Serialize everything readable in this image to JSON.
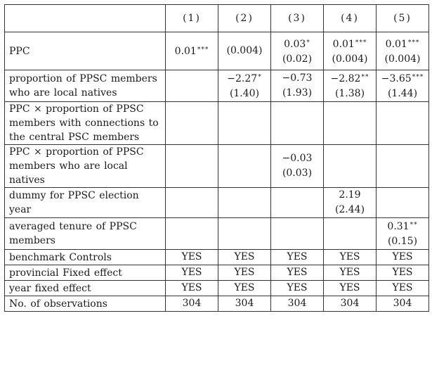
{
  "table": {
    "columns": [
      "(1)",
      "(2)",
      "(3)",
      "(4)",
      "(5)"
    ],
    "rows": [
      {
        "label": "PPC",
        "cells": [
          {
            "coef": "0.01",
            "stars": "***",
            "se": ""
          },
          {
            "coef": "",
            "stars": "",
            "se": "(0.004)"
          },
          {
            "coef": "0.03",
            "stars": "*",
            "se": "(0.02)"
          },
          {
            "coef": "0.01",
            "stars": "***",
            "se": "(0.004)"
          },
          {
            "coef": "0.01",
            "stars": "***",
            "se": "(0.004)"
          }
        ]
      },
      {
        "label": "proportion of PPSC members who are local natives",
        "cells": [
          {
            "coef": "",
            "stars": "",
            "se": ""
          },
          {
            "coef": "−2.27",
            "stars": "*",
            "se": "(1.40)"
          },
          {
            "coef": "−0.73",
            "stars": "",
            "se": "(1.93)"
          },
          {
            "coef": "−2.82",
            "stars": "**",
            "se": "(1.38)"
          },
          {
            "coef": "−3.65",
            "stars": "***",
            "se": "(1.44)"
          }
        ]
      },
      {
        "label": "PPC × proportion of PPSC members with connections to the central PSC members",
        "cells": [
          {
            "coef": "",
            "stars": "",
            "se": ""
          },
          {
            "coef": "",
            "stars": "",
            "se": ""
          },
          {
            "coef": "",
            "stars": "",
            "se": ""
          },
          {
            "coef": "",
            "stars": "",
            "se": ""
          },
          {
            "coef": "",
            "stars": "",
            "se": ""
          }
        ]
      },
      {
        "label": "PPC × proportion of PPSC members who are local natives",
        "cells": [
          {
            "coef": "",
            "stars": "",
            "se": ""
          },
          {
            "coef": "",
            "stars": "",
            "se": ""
          },
          {
            "coef": "−0.03",
            "stars": "",
            "se": "(0.03)"
          },
          {
            "coef": "",
            "stars": "",
            "se": ""
          },
          {
            "coef": "",
            "stars": "",
            "se": ""
          }
        ]
      },
      {
        "label": "dummy for PPSC election year",
        "cells": [
          {
            "coef": "",
            "stars": "",
            "se": ""
          },
          {
            "coef": "",
            "stars": "",
            "se": ""
          },
          {
            "coef": "",
            "stars": "",
            "se": ""
          },
          {
            "coef": "2.19",
            "stars": "",
            "se": "(2.44)"
          },
          {
            "coef": "",
            "stars": "",
            "se": ""
          }
        ]
      },
      {
        "label": "averaged tenure of PPSC members",
        "cells": [
          {
            "coef": "",
            "stars": "",
            "se": ""
          },
          {
            "coef": "",
            "stars": "",
            "se": ""
          },
          {
            "coef": "",
            "stars": "",
            "se": ""
          },
          {
            "coef": "",
            "stars": "",
            "se": ""
          },
          {
            "coef": "0.31",
            "stars": "**",
            "se": "(0.15)"
          }
        ]
      },
      {
        "label": "benchmark Controls",
        "cells": [
          {
            "coef": "YES",
            "stars": "",
            "se": ""
          },
          {
            "coef": "YES",
            "stars": "",
            "se": ""
          },
          {
            "coef": "YES",
            "stars": "",
            "se": ""
          },
          {
            "coef": "YES",
            "stars": "",
            "se": ""
          },
          {
            "coef": "YES",
            "stars": "",
            "se": ""
          }
        ]
      },
      {
        "label": "provincial Fixed effect",
        "cells": [
          {
            "coef": "YES",
            "stars": "",
            "se": ""
          },
          {
            "coef": "YES",
            "stars": "",
            "se": ""
          },
          {
            "coef": "YES",
            "stars": "",
            "se": ""
          },
          {
            "coef": "YES",
            "stars": "",
            "se": ""
          },
          {
            "coef": "YES",
            "stars": "",
            "se": ""
          }
        ]
      },
      {
        "label": "year fixed effect",
        "cells": [
          {
            "coef": "YES",
            "stars": "",
            "se": ""
          },
          {
            "coef": "YES",
            "stars": "",
            "se": ""
          },
          {
            "coef": "YES",
            "stars": "",
            "se": ""
          },
          {
            "coef": "YES",
            "stars": "",
            "se": ""
          },
          {
            "coef": "YES",
            "stars": "",
            "se": ""
          }
        ]
      },
      {
        "label": "No. of observations",
        "cells": [
          {
            "coef": "304",
            "stars": "",
            "se": ""
          },
          {
            "coef": "304",
            "stars": "",
            "se": ""
          },
          {
            "coef": "304",
            "stars": "",
            "se": ""
          },
          {
            "coef": "304",
            "stars": "",
            "se": ""
          },
          {
            "coef": "304",
            "stars": "",
            "se": ""
          }
        ]
      }
    ]
  }
}
